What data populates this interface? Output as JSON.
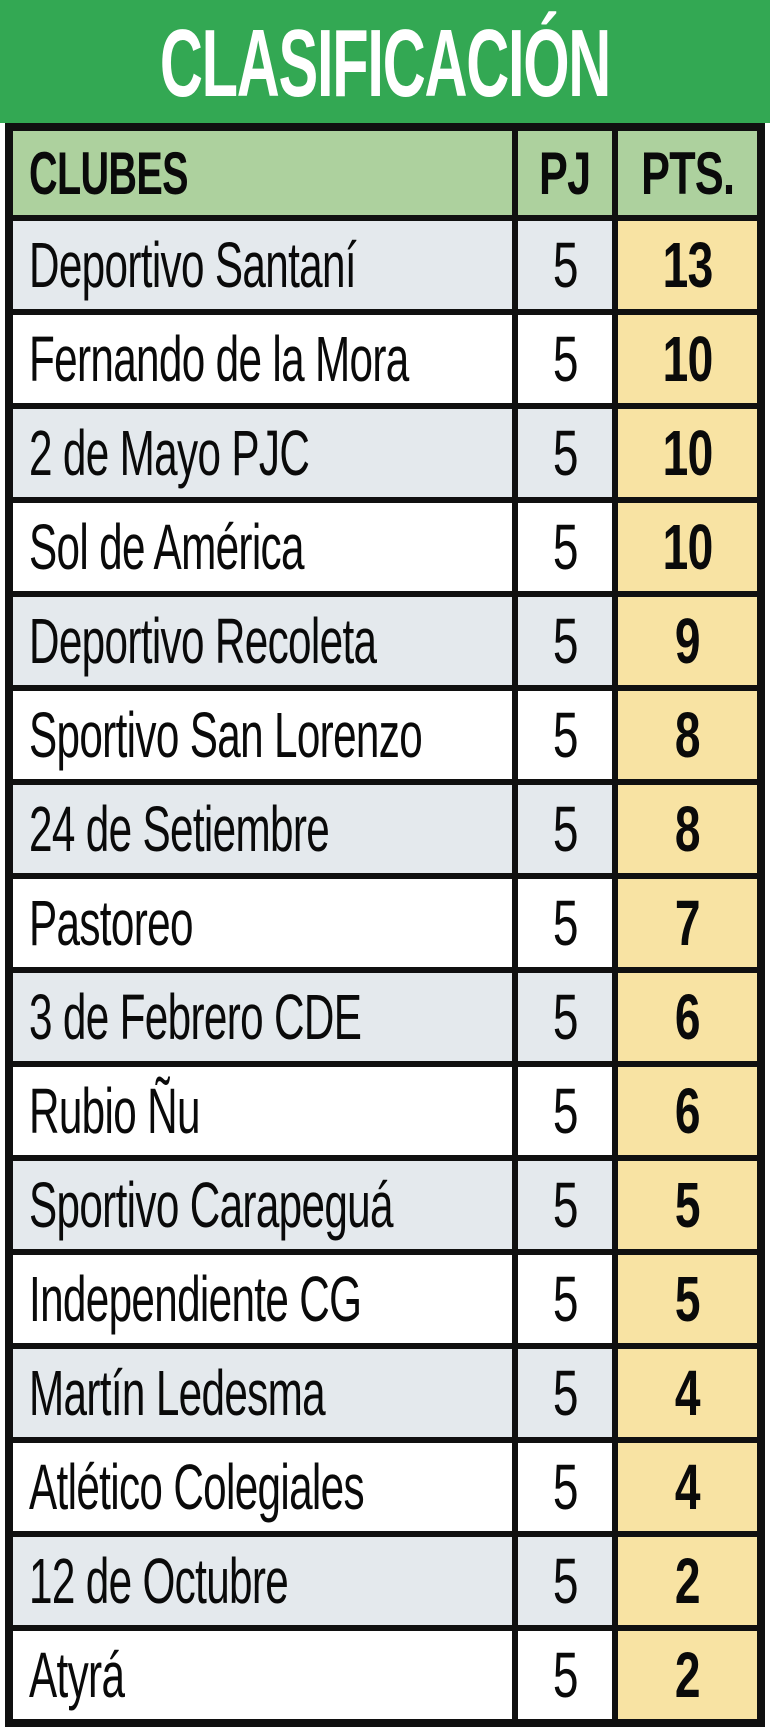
{
  "title": "CLASIFICACIÓN",
  "table": {
    "columns": {
      "clubs": "CLUBES",
      "pj": "PJ",
      "pts": "PTS."
    },
    "rows": [
      {
        "club": "Deportivo Santaní",
        "pj": "5",
        "pts": "13"
      },
      {
        "club": "Fernando de la Mora",
        "pj": "5",
        "pts": "10"
      },
      {
        "club": "2 de Mayo PJC",
        "pj": "5",
        "pts": "10"
      },
      {
        "club": "Sol de América",
        "pj": "5",
        "pts": "10"
      },
      {
        "club": "Deportivo Recoleta",
        "pj": "5",
        "pts": "9"
      },
      {
        "club": "Sportivo San Lorenzo",
        "pj": "5",
        "pts": "8"
      },
      {
        "club": "24 de Setiembre",
        "pj": "5",
        "pts": "8"
      },
      {
        "club": "Pastoreo",
        "pj": "5",
        "pts": "7"
      },
      {
        "club": "3 de Febrero CDE",
        "pj": "5",
        "pts": "6"
      },
      {
        "club": "Rubio Ñu",
        "pj": "5",
        "pts": "6"
      },
      {
        "club": "Sportivo Carapeguá",
        "pj": "5",
        "pts": "5"
      },
      {
        "club": "Independiente CG",
        "pj": "5",
        "pts": "5"
      },
      {
        "club": "Martín Ledesma",
        "pj": "5",
        "pts": "4"
      },
      {
        "club": "Atlético Colegiales",
        "pj": "5",
        "pts": "4"
      },
      {
        "club": "12 de Octubre",
        "pj": "5",
        "pts": "2"
      },
      {
        "club": "Atyrá",
        "pj": "5",
        "pts": "2"
      }
    ]
  },
  "colors": {
    "banner_green": "#33a853",
    "header_green": "#add19e",
    "row_stripe_gray": "#e4e9ed",
    "row_white": "#ffffff",
    "pts_yellow": "#f8e3a3",
    "border_black": "#101010",
    "title_text": "#ffffff",
    "body_text": "#0a0a0a"
  }
}
